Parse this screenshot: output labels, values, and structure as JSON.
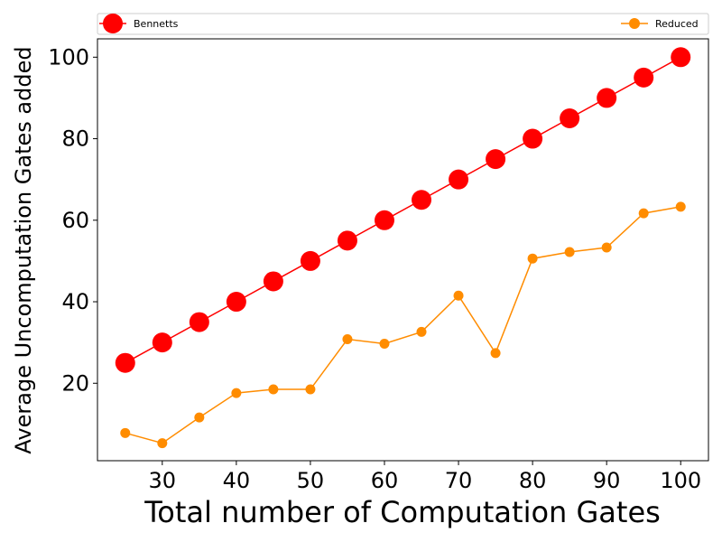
{
  "chart_data": {
    "type": "line",
    "title": "",
    "xlabel": "Total number of Computation Gates",
    "ylabel": "Average Uncomputation Gates added",
    "xlim": [
      21.25,
      103.75
    ],
    "ylim": [
      1.0,
      104.5
    ],
    "xticks": [
      30,
      40,
      50,
      60,
      70,
      80,
      90,
      100
    ],
    "yticks": [
      20,
      40,
      60,
      80,
      100
    ],
    "grid": false,
    "legend_placement": "top (expanded across plot width)",
    "x": [
      25,
      30,
      35,
      40,
      45,
      50,
      55,
      60,
      65,
      70,
      75,
      80,
      85,
      90,
      95,
      100
    ],
    "series": [
      {
        "name": "Bennetts",
        "color": "#ff0000",
        "marker": "large-circle",
        "values": [
          25,
          30,
          35,
          40,
          45,
          50,
          55,
          60,
          65,
          70,
          75,
          80,
          85,
          90,
          95,
          100
        ]
      },
      {
        "name": "Reduced",
        "color": "#ff8c00",
        "marker": "small-circle",
        "values": [
          7.8,
          5.3,
          11.6,
          17.6,
          18.5,
          18.5,
          30.8,
          29.7,
          32.6,
          41.5,
          27.4,
          50.6,
          52.2,
          53.3,
          61.7,
          63.3
        ]
      }
    ]
  }
}
